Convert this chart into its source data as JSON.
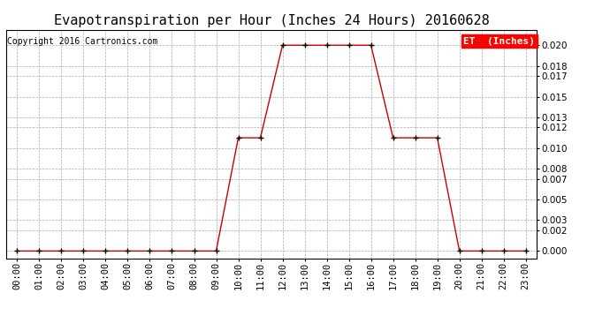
{
  "title": "Evapotranspiration per Hour (Inches 24 Hours) 20160628",
  "copyright": "Copyright 2016 Cartronics.com",
  "legend_label": "ET  (Inches)",
  "legend_bg": "#ff0000",
  "legend_text_color": "#ffffff",
  "line_color": "#cc0000",
  "marker_color": "#000000",
  "hours": [
    "00:00",
    "01:00",
    "02:00",
    "03:00",
    "04:00",
    "05:00",
    "06:00",
    "07:00",
    "08:00",
    "09:00",
    "10:00",
    "11:00",
    "12:00",
    "13:00",
    "14:00",
    "15:00",
    "16:00",
    "17:00",
    "18:00",
    "19:00",
    "20:00",
    "21:00",
    "22:00",
    "23:00"
  ],
  "values": [
    0.0,
    0.0,
    0.0,
    0.0,
    0.0,
    0.0,
    0.0,
    0.0,
    0.0,
    0.0,
    0.011,
    0.011,
    0.02,
    0.02,
    0.02,
    0.02,
    0.02,
    0.011,
    0.011,
    0.011,
    0.0,
    0.0,
    0.0,
    0.0
  ],
  "yticks": [
    0.0,
    0.002,
    0.003,
    0.005,
    0.007,
    0.008,
    0.01,
    0.012,
    0.013,
    0.015,
    0.017,
    0.018,
    0.02
  ],
  "ylim": [
    -0.0007,
    0.0215
  ],
  "grid_color": "#aaaaaa",
  "bg_color": "#ffffff",
  "title_fontsize": 11,
  "copyright_fontsize": 7,
  "tick_fontsize": 7.5,
  "legend_fontsize": 8
}
